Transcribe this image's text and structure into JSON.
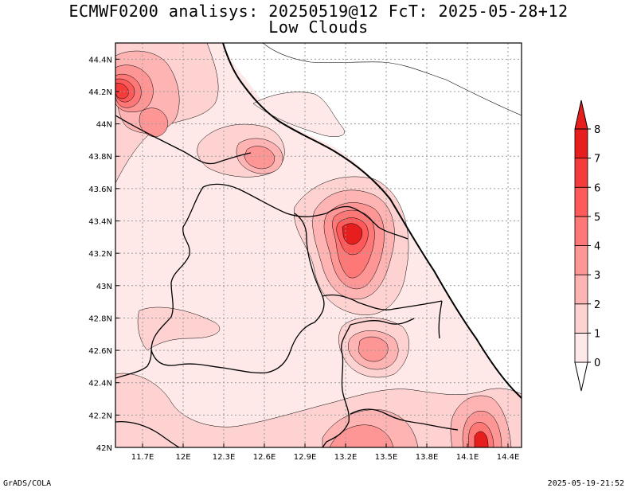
{
  "header": {
    "title_line1": "ECMWF0200 analisys: 20250519@12 FcT: 2025-05-28+12",
    "title_line2": "Low Clouds"
  },
  "axes": {
    "lon_ticks": [
      "11.7E",
      "12E",
      "12.3E",
      "12.6E",
      "12.9E",
      "13.2E",
      "13.5E",
      "13.8E",
      "14.1E",
      "14.4E"
    ],
    "lat_ticks": [
      "44.4N",
      "44.2N",
      "44N",
      "43.8N",
      "43.6N",
      "43.4N",
      "43.2N",
      "43N",
      "42.8N",
      "42.6N",
      "42.4N",
      "42.2N",
      "42N"
    ]
  },
  "colorbar": {
    "levels": [
      "0",
      "1",
      "2",
      "3",
      "4",
      "5",
      "6",
      "7",
      "8"
    ],
    "colors": [
      "#ffe8e8",
      "#ffd2d2",
      "#ffb4b4",
      "#ff9696",
      "#ff7878",
      "#ff5a5a",
      "#f53c3c",
      "#e61e1e"
    ]
  },
  "footer": {
    "left": "GrADS/COLA",
    "right": "2025-05-19-21:52"
  },
  "palette": {
    "base": "#ffe8e8",
    "cloud_free": "#ffffff",
    "coast": "#000000",
    "grid": "#9a9a9a"
  }
}
